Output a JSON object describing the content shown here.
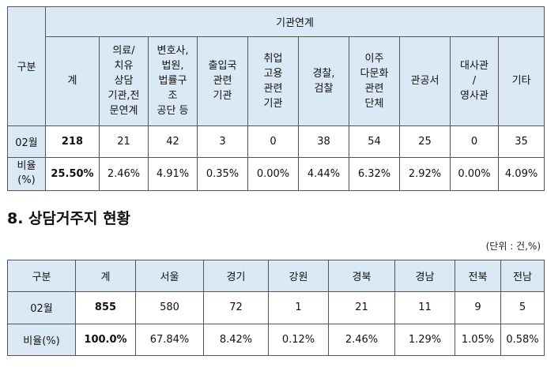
{
  "table1": {
    "row_header": "구분",
    "group_header": "기관연계",
    "columns": [
      "계",
      "의료/\n치유\n상담\n기관,전\n문연계",
      "변호사,\n법원,\n법률구\n조\n공단 등",
      "출입국\n관련\n기관",
      "취업\n고용\n관련\n기관",
      "경찰,\n검찰",
      "이주\n다문화\n관련\n단체",
      "관공서",
      "대사관\n/\n영사관",
      "기타"
    ],
    "rows": [
      {
        "label": "02월",
        "values": [
          "218",
          "21",
          "42",
          "3",
          "0",
          "38",
          "54",
          "25",
          "0",
          "35"
        ]
      },
      {
        "label": "비율\n(%)",
        "values": [
          "25.50%",
          "2.46%",
          "4.91%",
          "0.35%",
          "0.00%",
          "4.44%",
          "6.32%",
          "2.92%",
          "0.00%",
          "4.09%"
        ]
      }
    ]
  },
  "section": {
    "title": "8. 상담거주지 현황",
    "unit": "(단위 : 건,%)"
  },
  "table2": {
    "headers": [
      "구분",
      "계",
      "서울",
      "경기",
      "강원",
      "경북",
      "경남",
      "전북",
      "전남"
    ],
    "rows": [
      {
        "label": "02월",
        "values": [
          "855",
          "580",
          "72",
          "1",
          "21",
          "11",
          "9",
          "5"
        ]
      },
      {
        "label": "비율(%)",
        "values": [
          "100.0%",
          "67.84%",
          "8.42%",
          "0.12%",
          "2.46%",
          "1.29%",
          "1.05%",
          "0.58%"
        ]
      }
    ]
  },
  "colors": {
    "header_bg": "#dbe9f6",
    "border": "#555555"
  }
}
